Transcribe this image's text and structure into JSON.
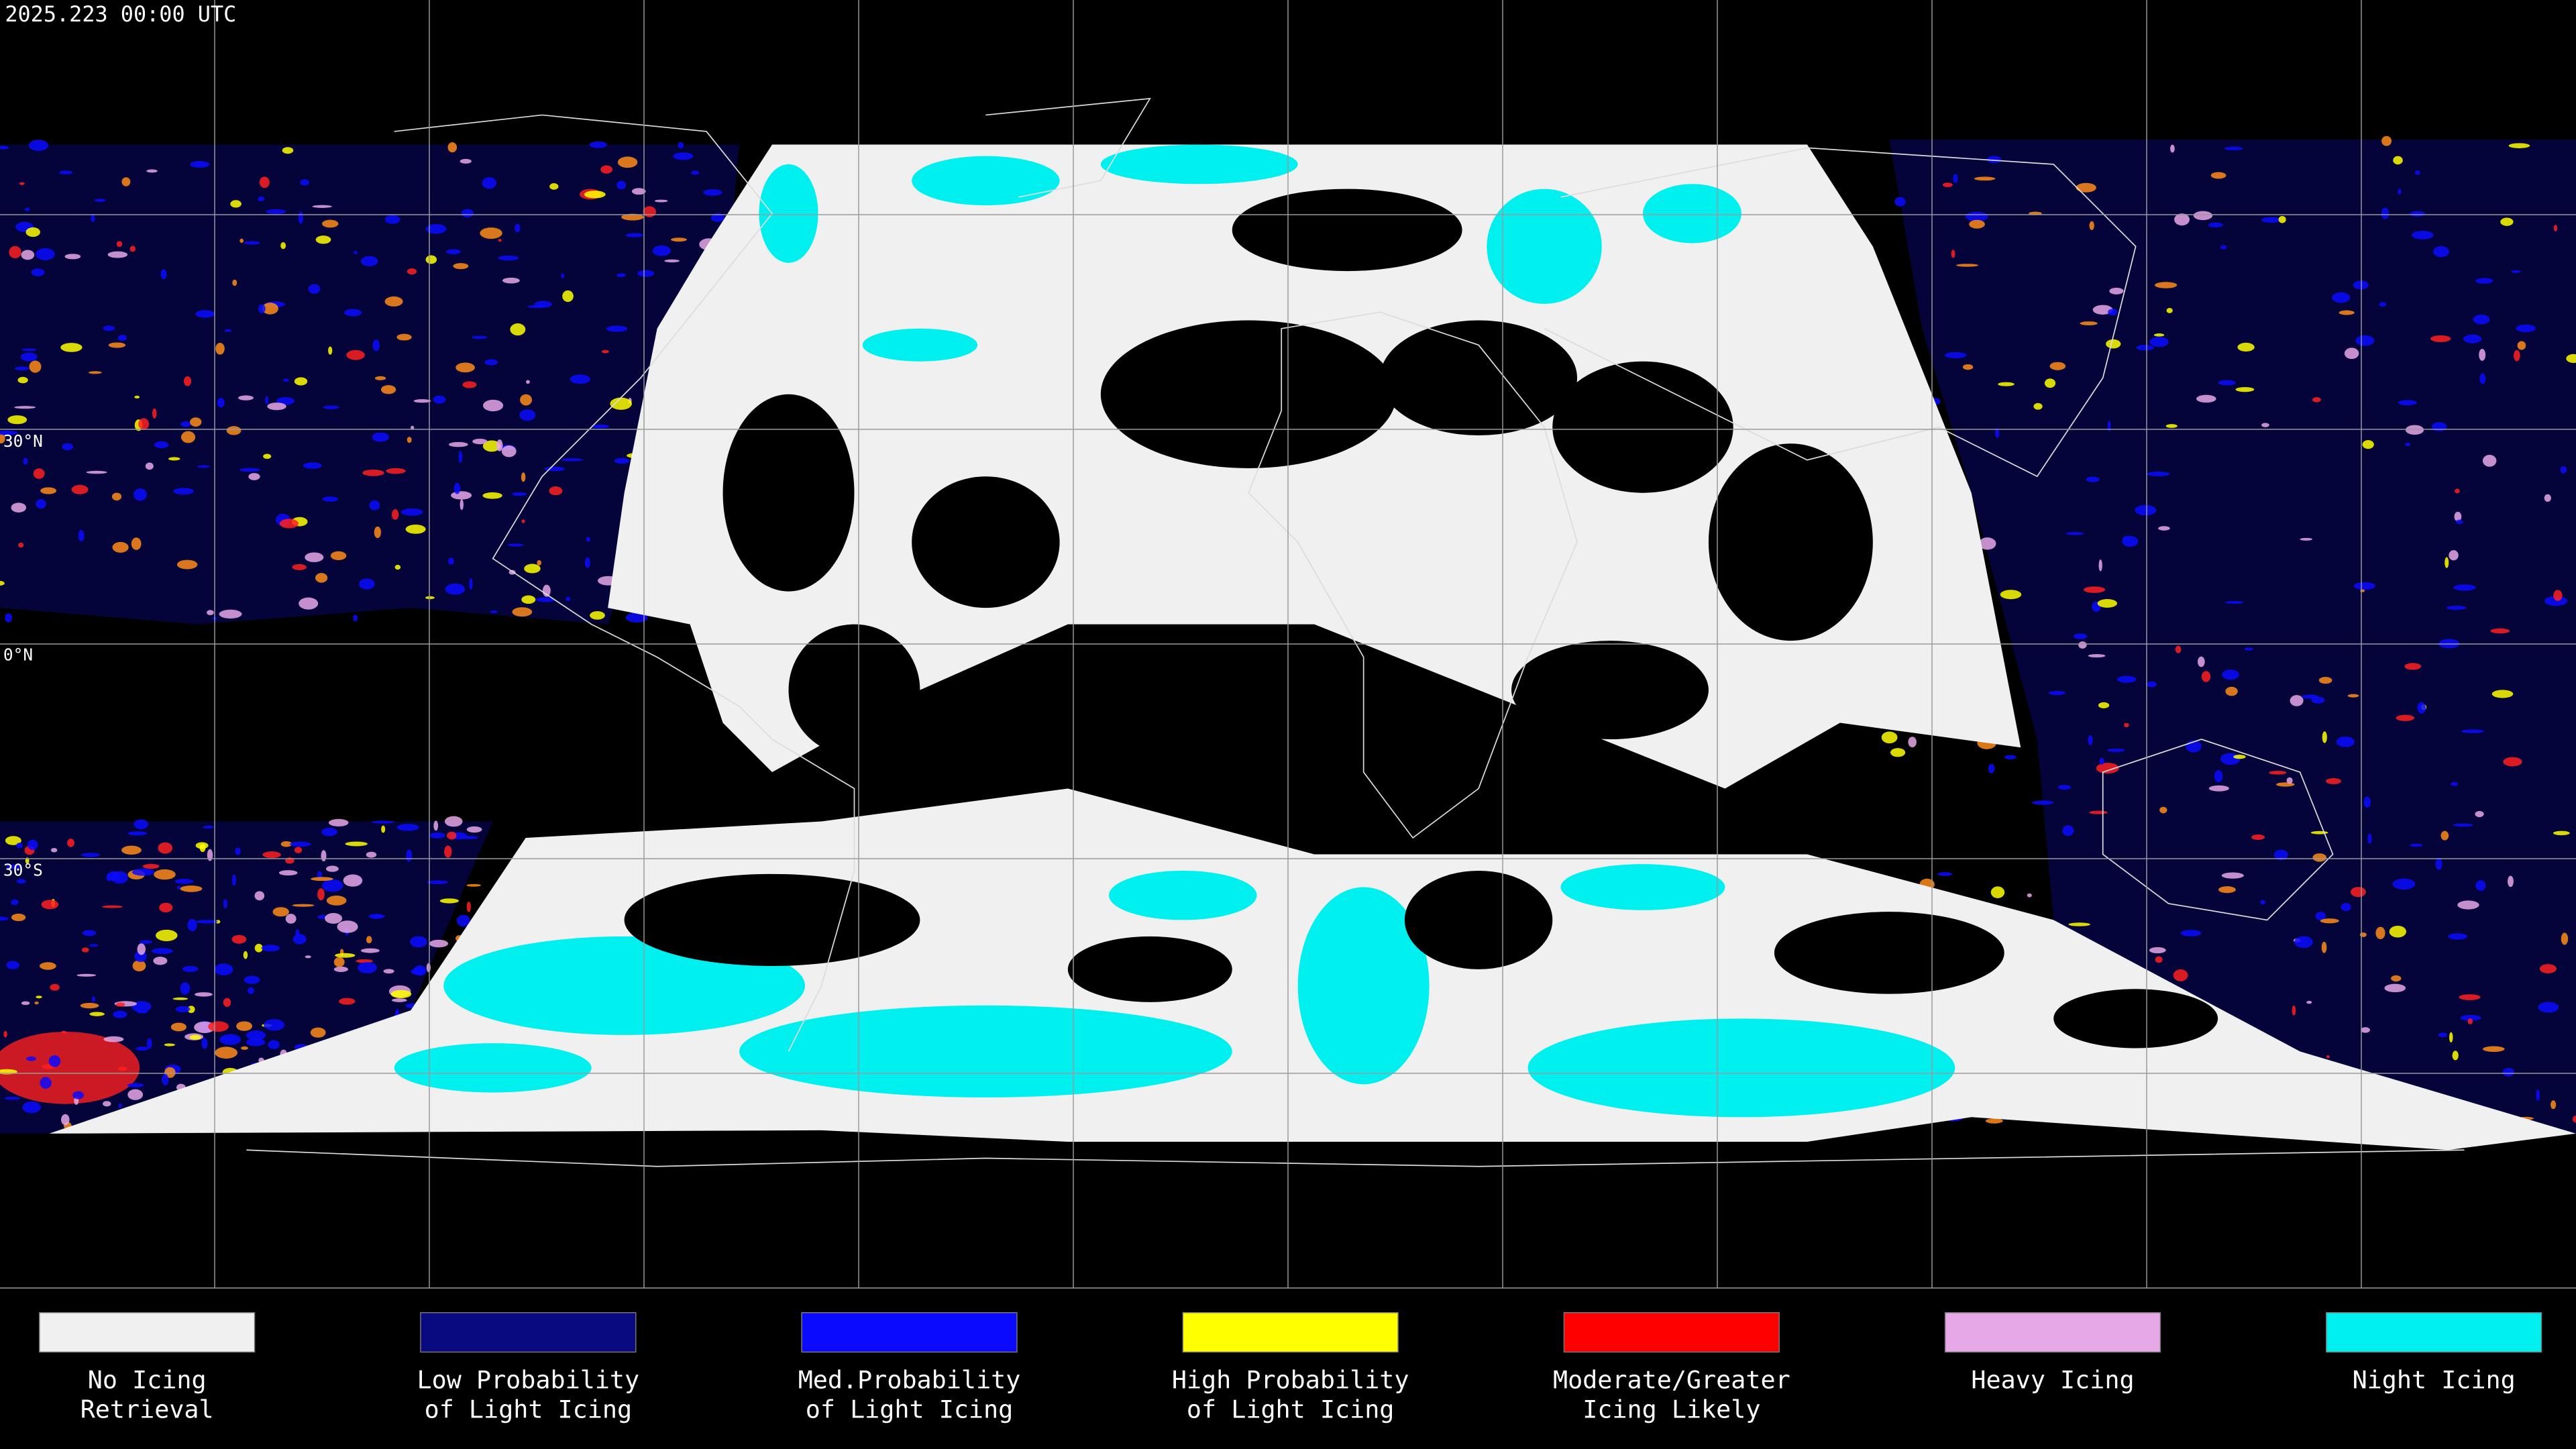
{
  "header": {
    "title": "2025.223 00:00 UTC"
  },
  "map": {
    "lat_labels": [
      "30°N",
      "0°N",
      "30°S"
    ]
  },
  "legend": {
    "items": [
      {
        "lines": [
          "No Icing",
          "Retrieval"
        ],
        "color": "#f0f0f0"
      },
      {
        "lines": [
          "Low Probability",
          "of Light Icing"
        ],
        "color": "#0a0a80"
      },
      {
        "lines": [
          "Med.Probability",
          "of Light Icing"
        ],
        "color": "#0a0aff"
      },
      {
        "lines": [
          "High Probability",
          "of Light Icing"
        ],
        "color": "#ffff00"
      },
      {
        "lines": [
          "Moderate/Greater",
          "Icing Likely"
        ],
        "color": "#ff0000"
      },
      {
        "lines": [
          "Heavy Icing"
        ],
        "color": "#e6a8e6"
      },
      {
        "lines": [
          "Night Icing"
        ],
        "color": "#00f0f0"
      }
    ]
  }
}
